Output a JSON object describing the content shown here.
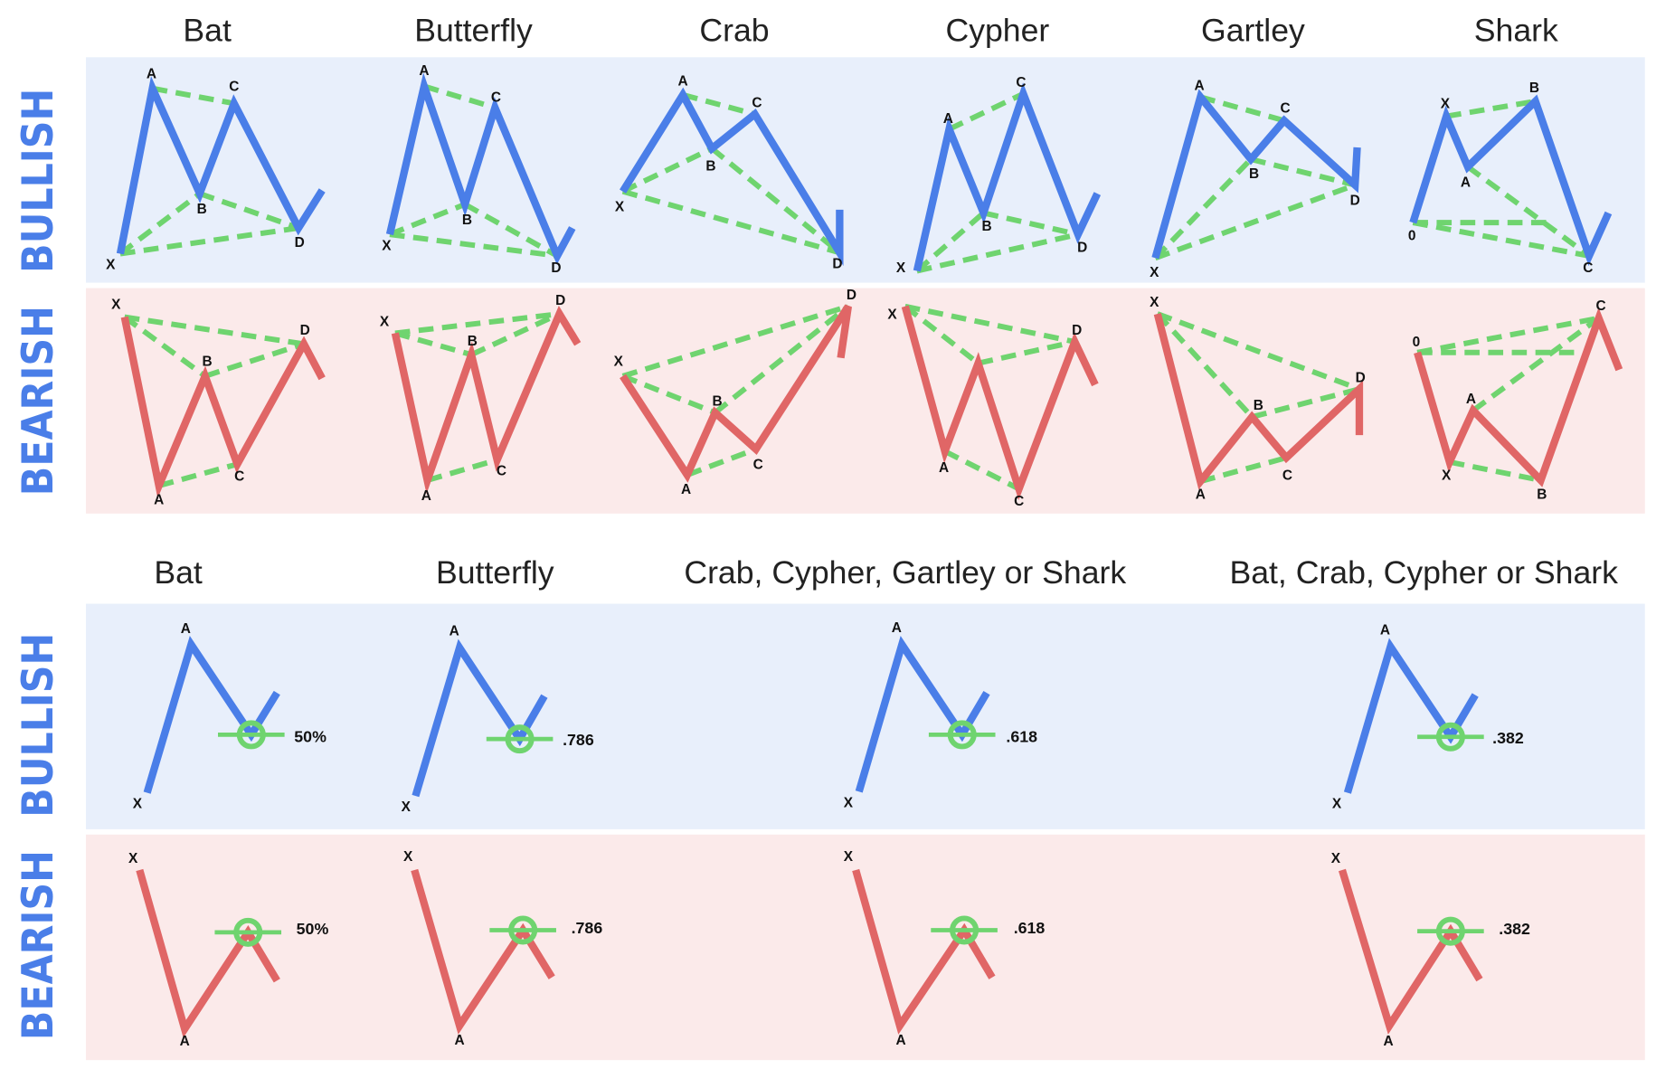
{
  "top": {
    "rows": [
      "BULLISH",
      "BEARISH"
    ],
    "columns": [
      {
        "title": "Bat",
        "bullish": [
          "X",
          "A",
          "B",
          "C",
          "D"
        ],
        "bearish": [
          "X",
          "A",
          "B",
          "C",
          "D"
        ]
      },
      {
        "title": "Butterfly",
        "bullish": [
          "X",
          "A",
          "B",
          "C",
          "D"
        ],
        "bearish": [
          "X",
          "A",
          "B",
          "C",
          "D"
        ]
      },
      {
        "title": "Crab",
        "bullish": [
          "X",
          "A",
          "B",
          "C",
          "D"
        ],
        "bearish": [
          "X",
          "A",
          "B",
          "C",
          "D"
        ]
      },
      {
        "title": "Cypher",
        "bullish": [
          "X",
          "A",
          "B",
          "C",
          "D"
        ],
        "bearish": [
          "X",
          "A",
          "C",
          "D"
        ]
      },
      {
        "title": "Gartley",
        "bullish": [
          "X",
          "A",
          "B",
          "C",
          "D"
        ],
        "bearish": [
          "X",
          "A",
          "B",
          "C",
          "D"
        ]
      },
      {
        "title": "Shark",
        "bullish": [
          "0",
          "X",
          "A",
          "B",
          "C"
        ],
        "bearish": [
          "0",
          "X",
          "A",
          "B",
          "C"
        ]
      }
    ]
  },
  "bottom": {
    "rows": [
      "BULLISH",
      "BEARISH"
    ],
    "columns": [
      {
        "title": "Bat",
        "bullish": {
          "points": [
            "X",
            "A"
          ],
          "ratio": "50%"
        },
        "bearish": {
          "points": [
            "X",
            "A"
          ],
          "ratio": "50%"
        }
      },
      {
        "title": "Butterfly",
        "bullish": {
          "points": [
            "X",
            "A"
          ],
          "ratio": ".786"
        },
        "bearish": {
          "points": [
            "X",
            "A"
          ],
          "ratio": ".786"
        }
      },
      {
        "title": "Crab, Cypher, Gartley or Shark",
        "bullish": {
          "points": [
            "X",
            "A"
          ],
          "ratio": ".618"
        },
        "bearish": {
          "points": [
            "X",
            "A"
          ],
          "ratio": ".618"
        }
      },
      {
        "title": "Bat, Crab, Cypher or Shark",
        "bullish": {
          "points": [
            "X",
            "A"
          ],
          "ratio": ".382"
        },
        "bearish": {
          "points": [
            "X",
            "A"
          ],
          "ratio": ".382"
        }
      }
    ]
  }
}
